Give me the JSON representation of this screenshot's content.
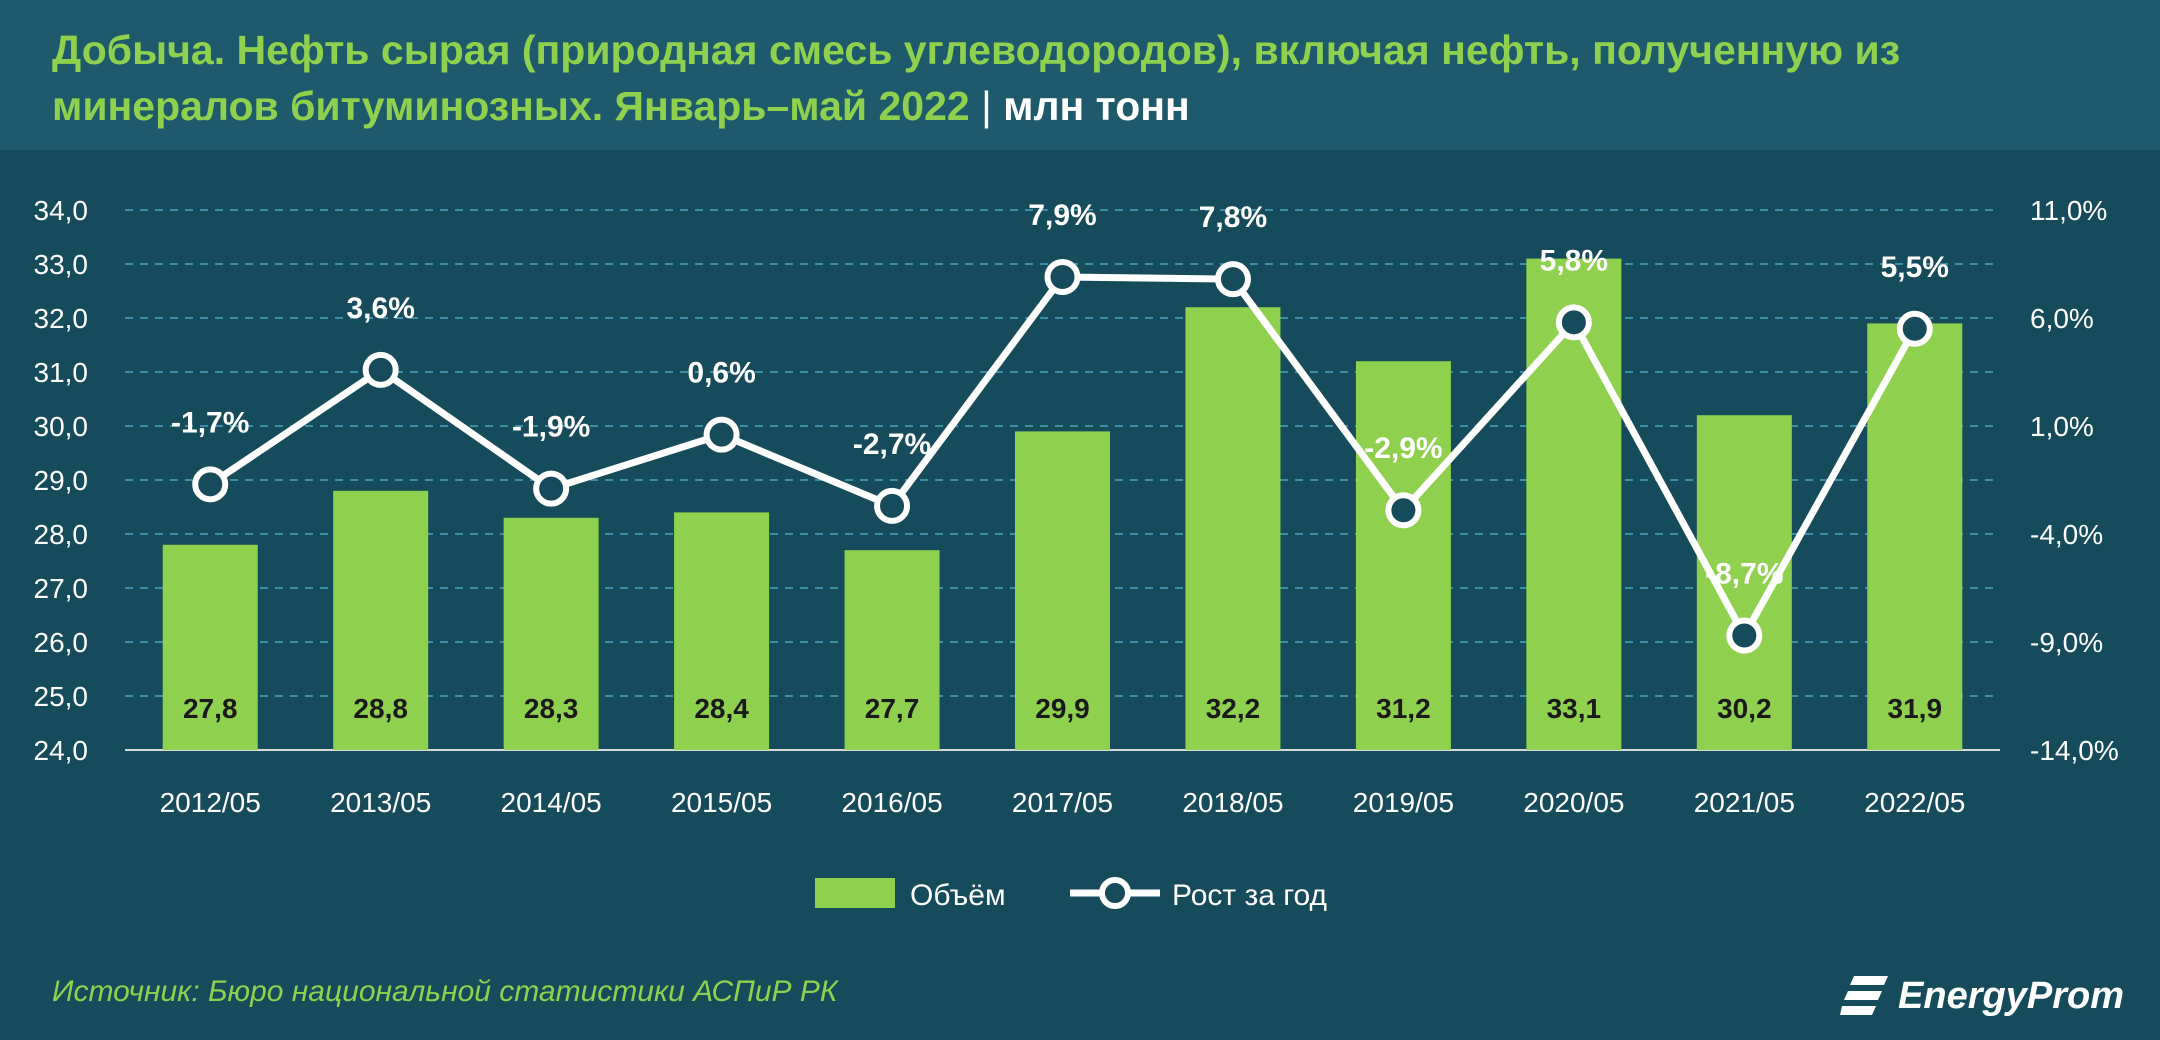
{
  "header": {
    "title": "Добыча. Нефть сырая (природная смесь углеводородов), включая нефть, полученную из минералов битуминозных. Январь–май 2022",
    "separator": "|",
    "unit": "млн тонн"
  },
  "footer": {
    "source": "Источник: Бюро национальной статистики АСПиР РК",
    "logo_text": "EnergyProm"
  },
  "colors": {
    "background": "#164b5b",
    "header": "#1e5a6b",
    "bar": "#8fd14f",
    "line": "#ffffff",
    "title": "#8fd14f"
  },
  "chart_data": {
    "type": "bar",
    "categories": [
      "2012/05",
      "2013/05",
      "2014/05",
      "2015/05",
      "2016/05",
      "2017/05",
      "2018/05",
      "2019/05",
      "2020/05",
      "2021/05",
      "2022/05"
    ],
    "series": [
      {
        "name": "Объём",
        "type": "bar",
        "axis": "left",
        "values": [
          27.8,
          28.8,
          28.3,
          28.4,
          27.7,
          29.9,
          32.2,
          31.2,
          33.1,
          30.2,
          31.9
        ],
        "labels": [
          "27,8",
          "28,8",
          "28,3",
          "28,4",
          "27,7",
          "29,9",
          "32,2",
          "31,2",
          "33,1",
          "30,2",
          "31,9"
        ]
      },
      {
        "name": "Рост за год",
        "type": "line",
        "axis": "right",
        "values": [
          -1.7,
          3.6,
          -1.9,
          0.6,
          -2.7,
          7.9,
          7.8,
          -2.9,
          5.8,
          -8.7,
          5.5
        ],
        "labels": [
          "-1,7%",
          "3,6%",
          "-1,9%",
          "0,6%",
          "-2,7%",
          "7,9%",
          "7,8%",
          "-2,9%",
          "5,8%",
          "-8,7%",
          "5,5%"
        ]
      }
    ],
    "y_left": {
      "ylim": [
        24,
        34
      ],
      "ticks": [
        24,
        25,
        26,
        27,
        28,
        29,
        30,
        31,
        32,
        33,
        34
      ],
      "tick_labels": [
        "24,0",
        "25,0",
        "26,0",
        "27,0",
        "28,0",
        "29,0",
        "30,0",
        "31,0",
        "32,0",
        "33,0",
        "34,0"
      ]
    },
    "y_right": {
      "ylim": [
        -14,
        11
      ],
      "ticks": [
        -14,
        -9,
        -4,
        1,
        6,
        11
      ],
      "tick_labels": [
        "-14,0%",
        "-9,0%",
        "-4,0%",
        "1,0%",
        "6,0%",
        "11,0%"
      ]
    },
    "grid": true,
    "legend": "bottom-center"
  }
}
